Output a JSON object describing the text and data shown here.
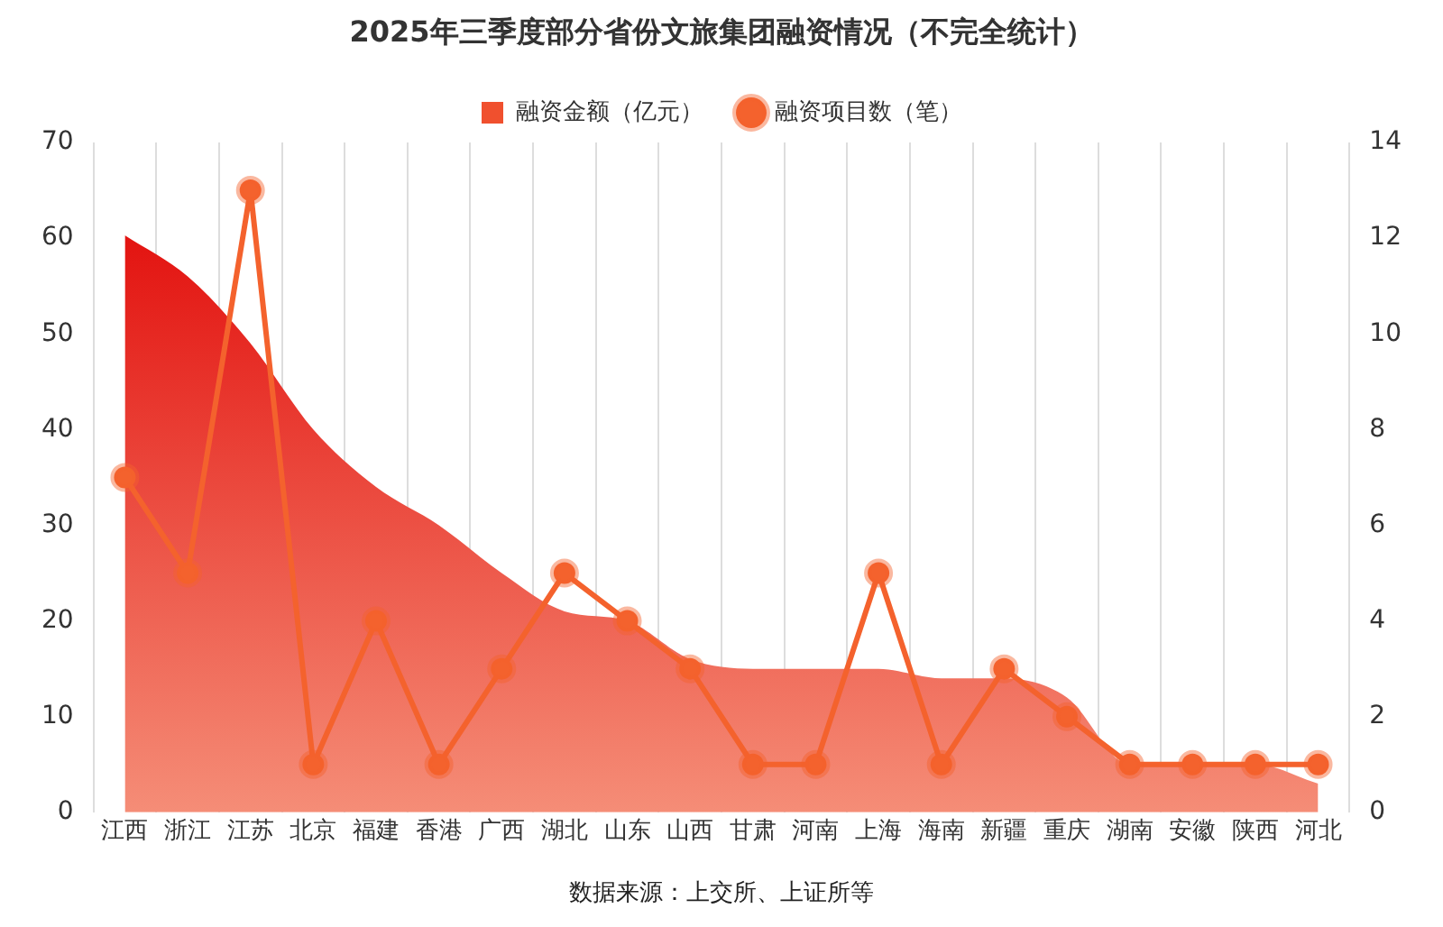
{
  "chart_data": {
    "type": "area",
    "title": "2025年三季度部分省份文旅集团融资情况（不完全统计）",
    "categories": [
      "江西",
      "浙江",
      "江苏",
      "北京",
      "福建",
      "香港",
      "广西",
      "湖北",
      "山东",
      "山西",
      "甘肃",
      "河南",
      "上海",
      "海南",
      "新疆",
      "重庆",
      "湖南",
      "安徽",
      "陕西",
      "河北"
    ],
    "series": [
      {
        "name": "融资金额（亿元）",
        "color": "#f0502e",
        "values": [
          60.3,
          56,
          49,
          40,
          34,
          30,
          25,
          21,
          20,
          16,
          15,
          15,
          15,
          14,
          14,
          12,
          5,
          5,
          5,
          3
        ]
      },
      {
        "name": "融资项目数（笔）",
        "type": "line",
        "axis": "y2",
        "color": "#f4622d",
        "marker": "circle",
        "values": [
          7,
          5,
          13,
          1,
          4,
          1,
          3,
          5,
          4,
          3,
          1,
          1,
          5,
          1,
          3,
          2,
          1,
          1,
          1,
          1
        ]
      }
    ],
    "ylim": [
      0,
      70
    ],
    "yticks": [
      0,
      10,
      20,
      30,
      40,
      50,
      60,
      70
    ],
    "y2lim": [
      0,
      14
    ],
    "y2ticks": [
      0,
      2,
      4,
      6,
      8,
      10,
      12,
      14
    ],
    "grid": "x",
    "legend": "top",
    "annotations": [
      "数据来源：上交所、上证所等"
    ]
  }
}
